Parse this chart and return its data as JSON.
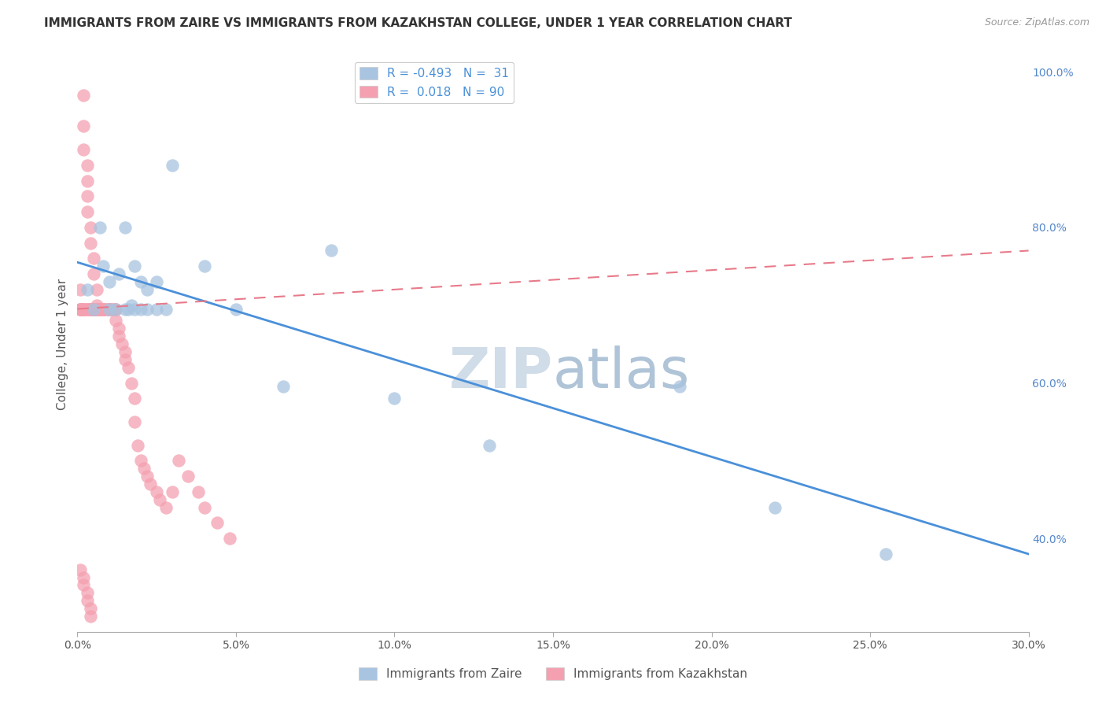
{
  "title": "IMMIGRANTS FROM ZAIRE VS IMMIGRANTS FROM KAZAKHSTAN COLLEGE, UNDER 1 YEAR CORRELATION CHART",
  "source": "Source: ZipAtlas.com",
  "ylabel": "College, Under 1 year",
  "legend_label_blue": "Immigrants from Zaire",
  "legend_label_pink": "Immigrants from Kazakhstan",
  "R_blue": -0.493,
  "N_blue": 31,
  "R_pink": 0.018,
  "N_pink": 90,
  "xmin": 0.0,
  "xmax": 0.3,
  "ymin": 0.28,
  "ymax": 1.02,
  "right_yticks": [
    1.0,
    0.8,
    0.6,
    0.4
  ],
  "right_yticklabels": [
    "100.0%",
    "80.0%",
    "60.0%",
    "40.0%"
  ],
  "xtick_labels": [
    "0.0%",
    "5.0%",
    "10.0%",
    "15.0%",
    "20.0%",
    "25.0%",
    "30.0%"
  ],
  "xtick_values": [
    0.0,
    0.05,
    0.1,
    0.15,
    0.2,
    0.25,
    0.3
  ],
  "color_blue": "#a8c4e0",
  "color_pink": "#f4a0b0",
  "line_color_blue": "#4a90d9",
  "line_color_pink": "#e87a8a",
  "watermark_color": "#c8d8e8",
  "title_fontsize": 11,
  "blue_x": [
    0.003,
    0.005,
    0.007,
    0.008,
    0.01,
    0.01,
    0.012,
    0.013,
    0.015,
    0.015,
    0.016,
    0.017,
    0.018,
    0.018,
    0.02,
    0.02,
    0.022,
    0.022,
    0.025,
    0.025,
    0.028,
    0.03,
    0.04,
    0.05,
    0.065,
    0.08,
    0.1,
    0.13,
    0.19,
    0.22,
    0.255
  ],
  "blue_y": [
    0.72,
    0.695,
    0.8,
    0.75,
    0.695,
    0.73,
    0.695,
    0.74,
    0.695,
    0.8,
    0.695,
    0.7,
    0.75,
    0.695,
    0.695,
    0.73,
    0.695,
    0.72,
    0.73,
    0.695,
    0.695,
    0.88,
    0.75,
    0.695,
    0.595,
    0.77,
    0.58,
    0.52,
    0.595,
    0.44,
    0.38
  ],
  "pink_x": [
    0.001,
    0.001,
    0.001,
    0.002,
    0.002,
    0.002,
    0.002,
    0.002,
    0.003,
    0.003,
    0.003,
    0.003,
    0.003,
    0.004,
    0.004,
    0.004,
    0.004,
    0.005,
    0.005,
    0.005,
    0.005,
    0.005,
    0.005,
    0.006,
    0.006,
    0.006,
    0.006,
    0.007,
    0.007,
    0.007,
    0.007,
    0.008,
    0.008,
    0.008,
    0.008,
    0.009,
    0.009,
    0.01,
    0.01,
    0.01,
    0.01,
    0.011,
    0.011,
    0.012,
    0.012,
    0.012,
    0.013,
    0.013,
    0.014,
    0.015,
    0.015,
    0.016,
    0.017,
    0.018,
    0.018,
    0.019,
    0.02,
    0.021,
    0.022,
    0.023,
    0.025,
    0.026,
    0.028,
    0.03,
    0.032,
    0.035,
    0.038,
    0.04,
    0.044,
    0.048,
    0.001,
    0.001,
    0.002,
    0.002,
    0.003,
    0.003,
    0.004,
    0.005,
    0.005,
    0.006,
    0.001,
    0.002,
    0.002,
    0.003,
    0.003,
    0.004,
    0.004,
    0.005,
    0.005,
    0.006
  ],
  "pink_y": [
    0.695,
    0.72,
    0.695,
    0.97,
    0.93,
    0.9,
    0.695,
    0.695,
    0.88,
    0.86,
    0.84,
    0.82,
    0.695,
    0.8,
    0.78,
    0.695,
    0.695,
    0.76,
    0.74,
    0.695,
    0.695,
    0.695,
    0.695,
    0.72,
    0.7,
    0.695,
    0.695,
    0.695,
    0.695,
    0.695,
    0.695,
    0.695,
    0.695,
    0.695,
    0.695,
    0.695,
    0.695,
    0.695,
    0.695,
    0.695,
    0.695,
    0.695,
    0.695,
    0.695,
    0.695,
    0.68,
    0.67,
    0.66,
    0.65,
    0.64,
    0.63,
    0.62,
    0.6,
    0.58,
    0.55,
    0.52,
    0.5,
    0.49,
    0.48,
    0.47,
    0.46,
    0.45,
    0.44,
    0.46,
    0.5,
    0.48,
    0.46,
    0.44,
    0.42,
    0.4,
    0.695,
    0.695,
    0.695,
    0.695,
    0.695,
    0.695,
    0.695,
    0.695,
    0.695,
    0.695,
    0.36,
    0.35,
    0.34,
    0.33,
    0.32,
    0.31,
    0.3,
    0.695,
    0.695,
    0.695
  ],
  "line_blue_x0": 0.0,
  "line_blue_x1": 0.3,
  "line_blue_y0": 0.755,
  "line_blue_y1": 0.38,
  "line_pink_x0": 0.0,
  "line_pink_x1": 0.3,
  "line_pink_y0": 0.695,
  "line_pink_y1": 0.77
}
